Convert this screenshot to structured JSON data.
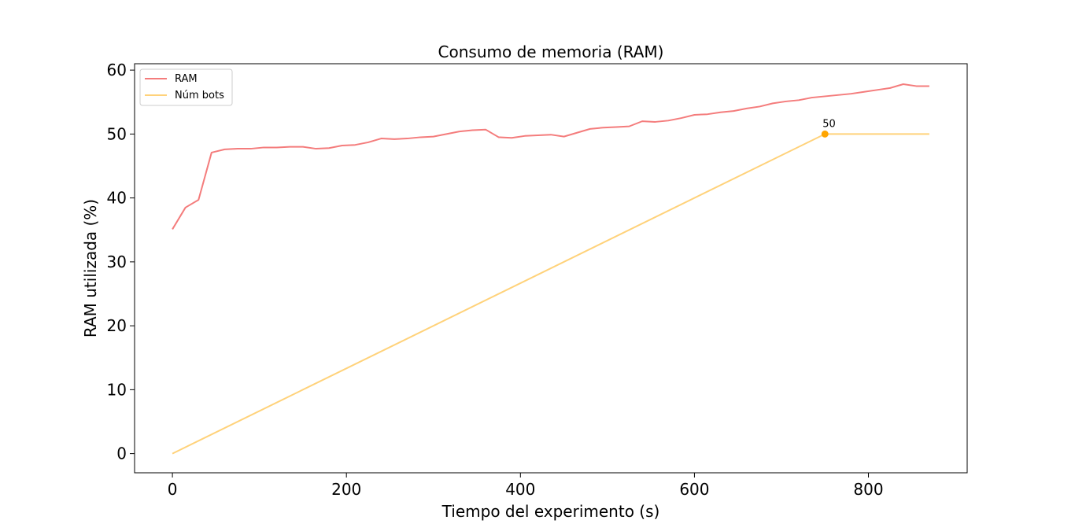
{
  "chart_data": {
    "type": "line",
    "title": "Consumo de memoria (RAM)",
    "xlabel": "Tiempo del experimento (s)",
    "ylabel": "RAM utilizada (%)",
    "xlim": [
      -43.5,
      913.5
    ],
    "ylim": [
      -3,
      61
    ],
    "xticks": [
      0,
      200,
      400,
      600,
      800
    ],
    "yticks": [
      0,
      10,
      20,
      30,
      40,
      50,
      60
    ],
    "legend_position": "upper-left",
    "series": [
      {
        "name": "RAM",
        "color": "#f47c7c",
        "x": [
          0,
          15,
          30,
          45,
          60,
          75,
          90,
          105,
          120,
          135,
          150,
          165,
          180,
          195,
          210,
          225,
          240,
          255,
          270,
          285,
          300,
          315,
          330,
          345,
          360,
          375,
          390,
          405,
          420,
          435,
          450,
          465,
          480,
          495,
          510,
          525,
          540,
          555,
          570,
          585,
          600,
          615,
          630,
          645,
          660,
          675,
          690,
          705,
          720,
          735,
          750,
          765,
          780,
          795,
          810,
          825,
          840,
          855,
          870
        ],
        "y": [
          35.1,
          38.5,
          39.7,
          47.1,
          47.6,
          47.7,
          47.7,
          47.9,
          47.9,
          48.0,
          48.0,
          47.7,
          47.8,
          48.2,
          48.3,
          48.7,
          49.3,
          49.2,
          49.3,
          49.5,
          49.6,
          50.0,
          50.4,
          50.6,
          50.7,
          49.5,
          49.4,
          49.7,
          49.8,
          49.9,
          49.6,
          50.2,
          50.8,
          51.0,
          51.1,
          51.2,
          52.0,
          51.9,
          52.1,
          52.5,
          53.0,
          53.1,
          53.4,
          53.6,
          54.0,
          54.3,
          54.8,
          55.1,
          55.3,
          55.7,
          55.9,
          56.1,
          56.3,
          56.6,
          56.9,
          57.2,
          57.8,
          57.5,
          57.5
        ]
      },
      {
        "name": "Núm bots",
        "color": "#ffd27a",
        "x": [
          0,
          750,
          870
        ],
        "y": [
          0,
          50,
          50
        ]
      }
    ],
    "annotations": [
      {
        "x": 750,
        "y": 50,
        "text": "50",
        "marker_color": "#ffa500"
      }
    ]
  }
}
